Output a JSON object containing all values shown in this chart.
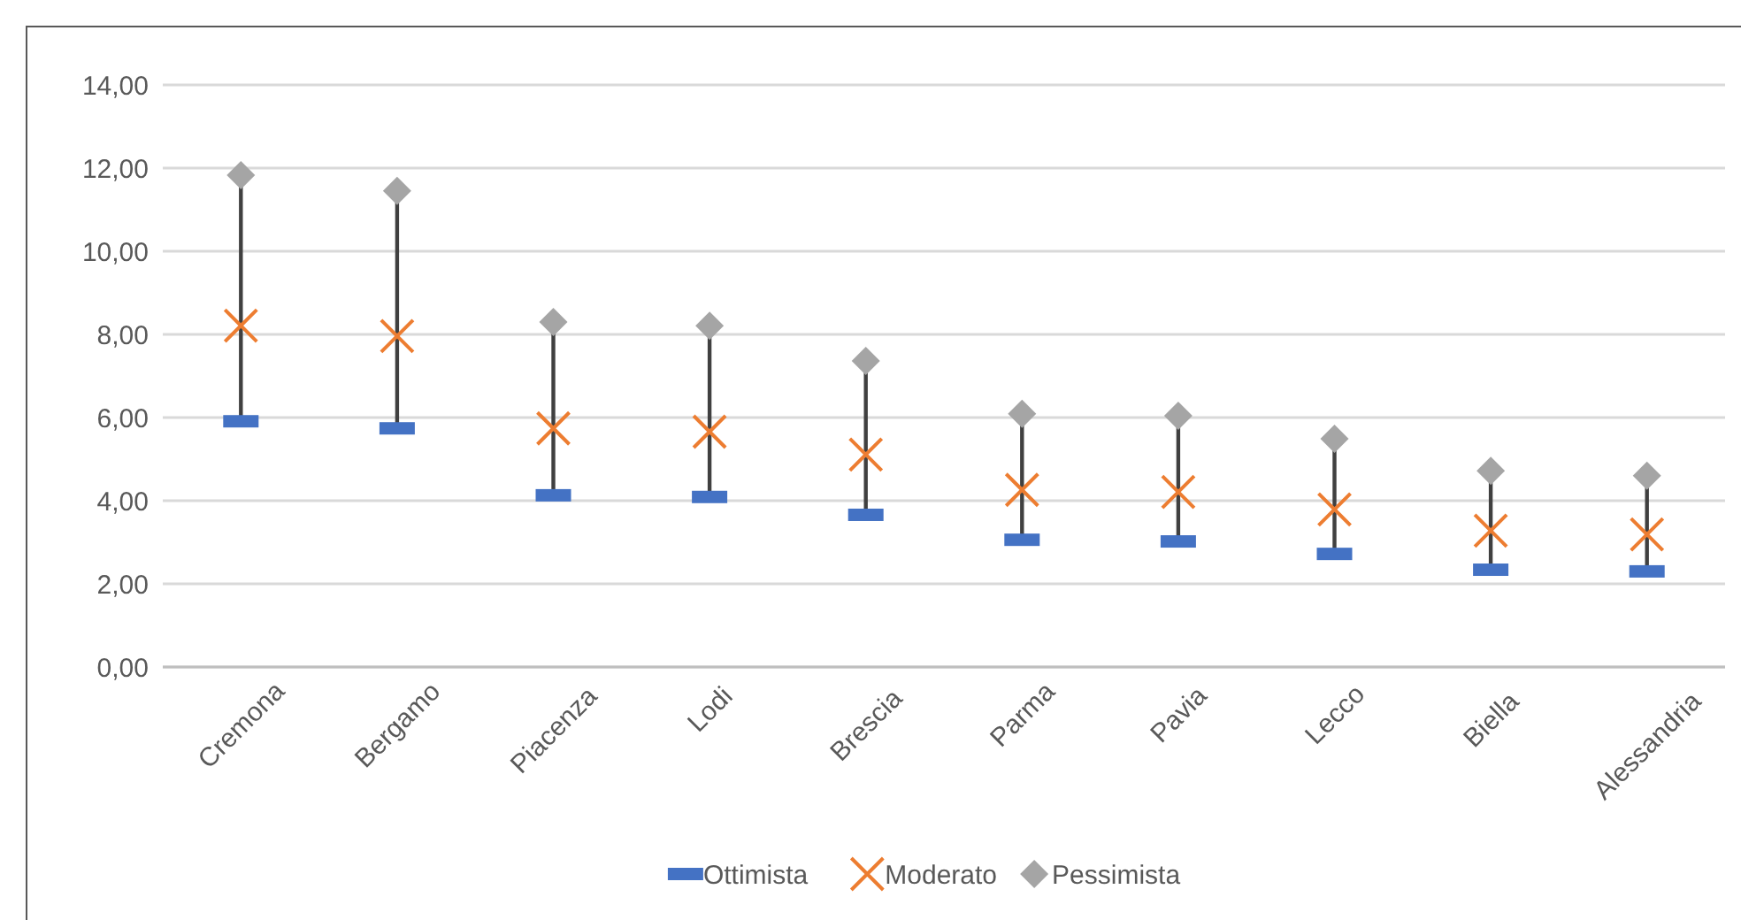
{
  "chart_data": {
    "type": "scatter",
    "categories": [
      "Cremona",
      "Bergamo",
      "Piacenza",
      "Lodi",
      "Brescia",
      "Parma",
      "Pavia",
      "Lecco",
      "Biella",
      "Alessandria"
    ],
    "series": [
      {
        "name": "Ottimista",
        "color": "#4472c4",
        "marker": "square",
        "values": [
          5.91,
          5.74,
          4.13,
          4.09,
          3.66,
          3.06,
          3.02,
          2.72,
          2.34,
          2.3
        ]
      },
      {
        "name": "Moderato",
        "color": "#ed7d31",
        "marker": "cross",
        "values": [
          8.21,
          7.96,
          5.74,
          5.66,
          5.11,
          4.26,
          4.21,
          3.79,
          3.28,
          3.19
        ]
      },
      {
        "name": "Pessimista",
        "color": "#a5a5a5",
        "marker": "diamond",
        "values": [
          11.83,
          11.45,
          8.3,
          8.21,
          7.36,
          6.09,
          6.04,
          5.49,
          4.72,
          4.6
        ]
      }
    ],
    "ylim": [
      0,
      14
    ],
    "yticks": [
      {
        "value": 0,
        "label": "0,00"
      },
      {
        "value": 2,
        "label": "2,00"
      },
      {
        "value": 4,
        "label": "4,00"
      },
      {
        "value": 6,
        "label": "6,00"
      },
      {
        "value": 8,
        "label": "8,00"
      },
      {
        "value": 10,
        "label": "10,00"
      },
      {
        "value": 12,
        "label": "12,00"
      },
      {
        "value": 14,
        "label": "14,00"
      }
    ],
    "grid": "y",
    "legend": "bottom"
  }
}
